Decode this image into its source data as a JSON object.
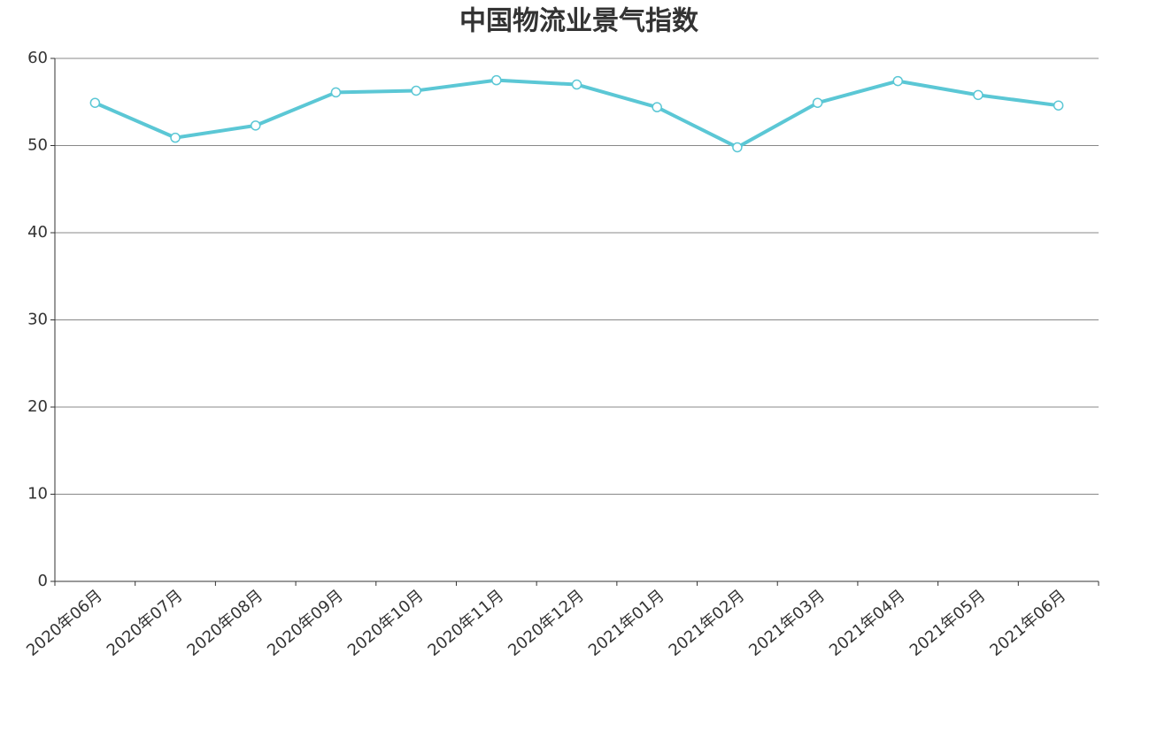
{
  "chart_data": {
    "type": "line",
    "title": "中国物流业景气指数",
    "categories": [
      "2020年06月",
      "2020年07月",
      "2020年08月",
      "2020年09月",
      "2020年10月",
      "2020年11月",
      "2020年12月",
      "2021年01月",
      "2021年02月",
      "2021年03月",
      "2021年04月",
      "2021年05月",
      "2021年06月"
    ],
    "series": [
      {
        "name": "中国物流业景气指数",
        "color": "#5bc7d5",
        "values": [
          54.9,
          50.9,
          52.3,
          56.1,
          56.3,
          57.5,
          57.0,
          54.4,
          49.8,
          54.9,
          57.4,
          55.8,
          54.6
        ]
      }
    ],
    "ylim": [
      0,
      60
    ],
    "yticks": [
      0,
      10,
      20,
      30,
      40,
      50,
      60
    ],
    "grid": true
  }
}
